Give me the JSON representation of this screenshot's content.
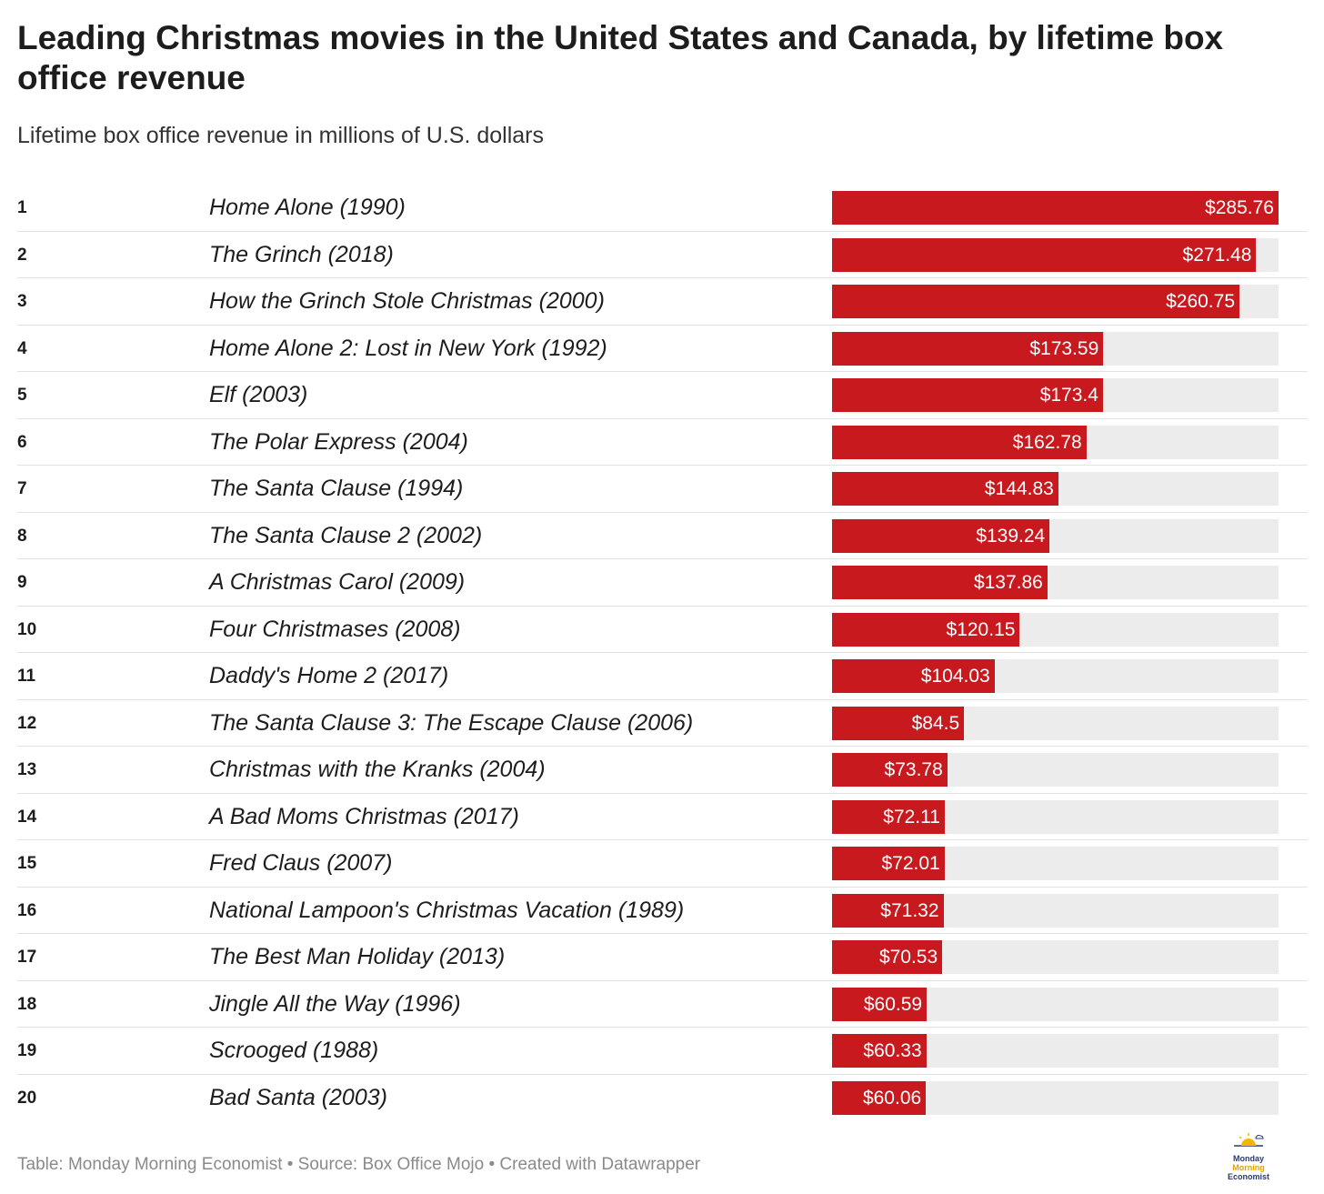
{
  "title": "Leading Christmas movies in the United States and Canada, by lifetime box office revenue",
  "subtitle": "Lifetime box office revenue in millions of U.S. dollars",
  "footer": "Table: Monday Morning Economist • Source: Box Office Mojo • Created with Datawrapper",
  "logo": {
    "line1": "Monday",
    "line2": "Morning",
    "line3": "Economist",
    "icon": "sunrise-cloud-icon"
  },
  "colors": {
    "bar": "#c8191e",
    "track": "#ececec"
  },
  "chart_data": {
    "type": "table",
    "max_value": 285.76,
    "columns": [
      "rank",
      "movie",
      "revenue"
    ],
    "rows": [
      {
        "rank": "1",
        "movie": "Home Alone (1990)",
        "value": 285.76,
        "label": "$285.76"
      },
      {
        "rank": "2",
        "movie": "The Grinch (2018)",
        "value": 271.48,
        "label": "$271.48"
      },
      {
        "rank": "3",
        "movie": "How the Grinch Stole Christmas (2000)",
        "value": 260.75,
        "label": "$260.75"
      },
      {
        "rank": "4",
        "movie": "Home Alone 2: Lost in New York (1992)",
        "value": 173.59,
        "label": "$173.59"
      },
      {
        "rank": "5",
        "movie": "Elf (2003)",
        "value": 173.4,
        "label": "$173.4"
      },
      {
        "rank": "6",
        "movie": "The Polar Express (2004)",
        "value": 162.78,
        "label": "$162.78"
      },
      {
        "rank": "7",
        "movie": "The Santa Clause (1994)",
        "value": 144.83,
        "label": "$144.83"
      },
      {
        "rank": "8",
        "movie": "The Santa Clause 2 (2002)",
        "value": 139.24,
        "label": "$139.24"
      },
      {
        "rank": "9",
        "movie": "A Christmas Carol (2009)",
        "value": 137.86,
        "label": "$137.86"
      },
      {
        "rank": "10",
        "movie": "Four Christmases (2008)",
        "value": 120.15,
        "label": "$120.15"
      },
      {
        "rank": "11",
        "movie": "Daddy's Home 2 (2017)",
        "value": 104.03,
        "label": "$104.03"
      },
      {
        "rank": "12",
        "movie": "The Santa Clause 3: The Escape Clause (2006)",
        "value": 84.5,
        "label": "$84.5"
      },
      {
        "rank": "13",
        "movie": "Christmas with the Kranks (2004)",
        "value": 73.78,
        "label": "$73.78"
      },
      {
        "rank": "14",
        "movie": "A Bad Moms Christmas (2017)",
        "value": 72.11,
        "label": "$72.11"
      },
      {
        "rank": "15",
        "movie": "Fred Claus (2007)",
        "value": 72.01,
        "label": "$72.01"
      },
      {
        "rank": "16",
        "movie": "National Lampoon's Christmas Vacation (1989)",
        "value": 71.32,
        "label": "$71.32"
      },
      {
        "rank": "17",
        "movie": "The Best Man Holiday (2013)",
        "value": 70.53,
        "label": "$70.53"
      },
      {
        "rank": "18",
        "movie": "Jingle All the Way (1996)",
        "value": 60.59,
        "label": "$60.59"
      },
      {
        "rank": "19",
        "movie": "Scrooged (1988)",
        "value": 60.33,
        "label": "$60.33"
      },
      {
        "rank": "20",
        "movie": "Bad Santa (2003)",
        "value": 60.06,
        "label": "$60.06"
      }
    ]
  }
}
